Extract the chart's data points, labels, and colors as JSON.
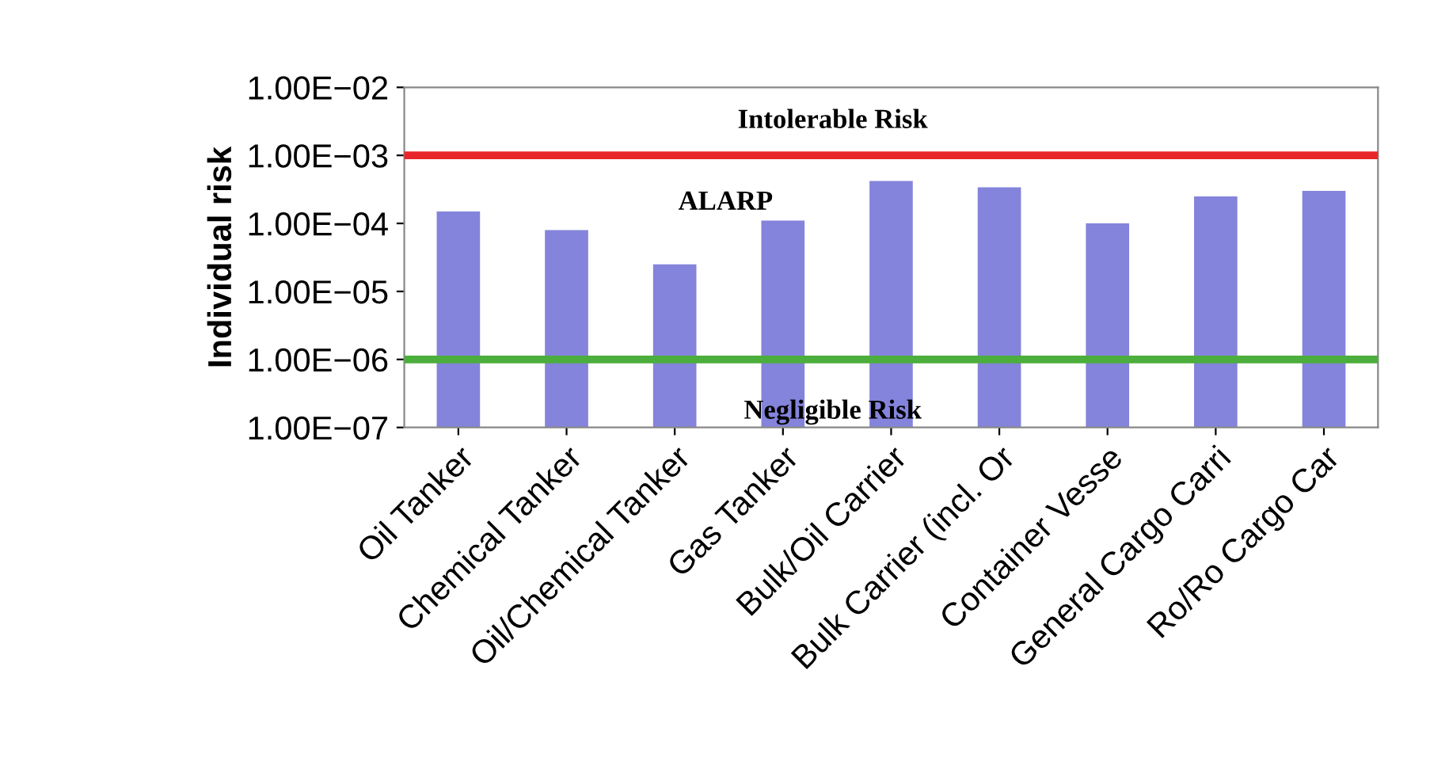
{
  "chart_data": {
    "type": "bar",
    "ylabel": "Individual risk",
    "categories": [
      "Oil Tanker",
      "Chemical Tanker",
      "Oil/Chemical Tanker",
      "Gas Tanker",
      "Bulk/Oil Carrier",
      "Bulk Carrier (incl. Or",
      "Container Vesse",
      "General Cargo Carri",
      "Ro/Ro Cargo Car"
    ],
    "values": [
      0.00015,
      8e-05,
      2.5e-05,
      0.00011,
      0.00042,
      0.00034,
      0.0001,
      0.00025,
      0.0003
    ],
    "color": "#8484dc",
    "log": "y",
    "ylim": [
      1e-07,
      0.01
    ],
    "yticks": [
      {
        "value": 1e-07,
        "label": "1.00E−07"
      },
      {
        "value": 1e-06,
        "label": "1.00E−06"
      },
      {
        "value": 1e-05,
        "label": "1.00E−05"
      },
      {
        "value": 0.0001,
        "label": "1.00E−04"
      },
      {
        "value": 0.001,
        "label": "1.00E−03"
      },
      {
        "value": 0.01,
        "label": "1.00E−02"
      }
    ],
    "ref_lines": [
      {
        "axis": "y",
        "value": 0.001,
        "color": "#e8262a"
      },
      {
        "axis": "y",
        "value": 1e-06,
        "color": "#4cae3c"
      }
    ],
    "annotations": [
      "Intolerable Risk",
      "ALARP",
      "Negligible Risk"
    ]
  }
}
